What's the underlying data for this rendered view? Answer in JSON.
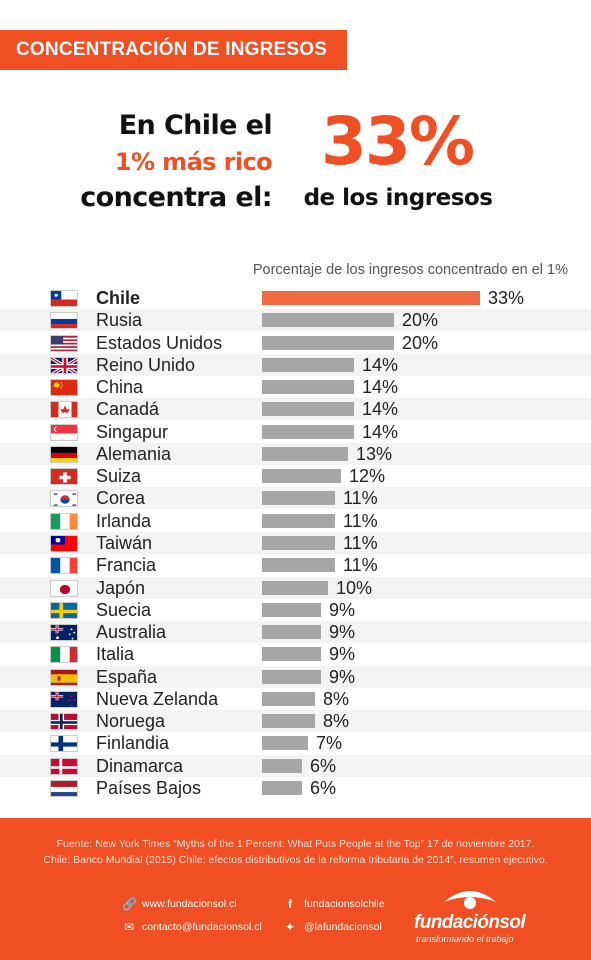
{
  "header": {
    "tag": "CONCENTRACIÓN DE INGRESOS",
    "line1": "En Chile el",
    "line2": "1% más rico",
    "line3": "concentra el:",
    "big_value": "33%",
    "big_caption": "de los ingresos"
  },
  "chart_data": {
    "type": "bar",
    "orientation": "horizontal",
    "title": "Porcentaje de los ingresos concentrado en el 1%",
    "xlim": [
      0,
      33
    ],
    "highlight_color": "#f26a43",
    "bar_color": "#a6a6a6",
    "categories": [
      "Chile",
      "Rusia",
      "Estados Unidos",
      "Reino Unido",
      "China",
      "Canadá",
      "Singapur",
      "Alemania",
      "Suiza",
      "Corea",
      "Irlanda",
      "Taiwán",
      "Francia",
      "Japón",
      "Suecia",
      "Australia",
      "Italia",
      "España",
      "Nueva Zelanda",
      "Noruega",
      "Finlandia",
      "Dinamarca",
      "Países Bajos"
    ],
    "values": [
      33,
      20,
      20,
      14,
      14,
      14,
      14,
      13,
      12,
      11,
      11,
      11,
      11,
      10,
      9,
      9,
      9,
      9,
      8,
      8,
      7,
      6,
      6
    ],
    "labels": [
      "33%",
      "20%",
      "20%",
      "14%",
      "14%",
      "14%",
      "14%",
      "13%",
      "12%",
      "11%",
      "11%",
      "11%",
      "11%",
      "10%",
      "9%",
      "9%",
      "9%",
      "9%",
      "8%",
      "8%",
      "7%",
      "6%",
      "6%"
    ],
    "flags": [
      "chile-flag-icon",
      "russia-flag-icon",
      "usa-flag-icon",
      "uk-flag-icon",
      "china-flag-icon",
      "canada-flag-icon",
      "singapore-flag-icon",
      "germany-flag-icon",
      "switzerland-flag-icon",
      "korea-flag-icon",
      "ireland-flag-icon",
      "taiwan-flag-icon",
      "france-flag-icon",
      "japan-flag-icon",
      "sweden-flag-icon",
      "australia-flag-icon",
      "italy-flag-icon",
      "spain-flag-icon",
      "new-zealand-flag-icon",
      "norway-flag-icon",
      "finland-flag-icon",
      "denmark-flag-icon",
      "netherlands-flag-icon"
    ]
  },
  "footer": {
    "source_line1": "Fuente: New York Times “Myths of the 1 Percent: What Puts People at the Top” 17 de noviembre 2017.",
    "source_line2": "Chile: Banco Mundial (2015) Chile: efectos distributivos de la reforma tributaria de 2014”, resumen ejecutivo.",
    "website": "www.fundacionsol.cl",
    "email": "contacto@fundacionsol.cl",
    "facebook": "fundacionsolchile",
    "twitter": "@lafundacionsol",
    "logo_name": "fundaciónsol",
    "logo_tagline": "transformando el trabajo"
  }
}
